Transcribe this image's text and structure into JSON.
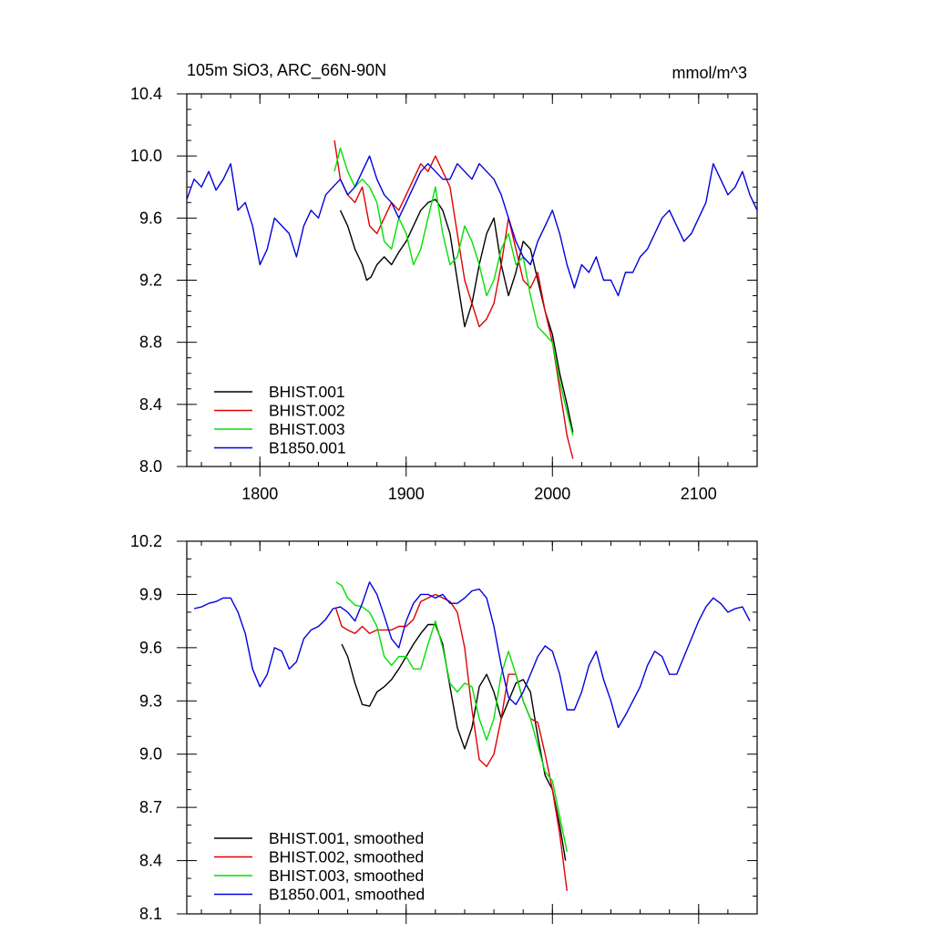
{
  "header": {
    "title": "105m SiO3, ARC_66N-90N",
    "units": "mmol/m^3"
  },
  "colors": {
    "BHIST.001": "#000000",
    "BHIST.002": "#e00000",
    "BHIST.003": "#00e000",
    "B1850.001": "#0000e0"
  },
  "chart_data": [
    {
      "type": "line",
      "title": "105m SiO3, ARC_66N-90N",
      "xlabel": "",
      "ylabel": "",
      "units_label": "mmol/m^3",
      "xlim": [
        1750,
        2140
      ],
      "ylim": [
        8.0,
        10.4
      ],
      "xticks": [
        1800,
        1900,
        2000,
        2100
      ],
      "xtick_labels": [
        "1800",
        "1900",
        "2000",
        "2100"
      ],
      "yticks": [
        8.0,
        8.4,
        8.8,
        9.2,
        9.6,
        10.0,
        10.4
      ],
      "ytick_labels": [
        "8.0",
        "8.4",
        "8.8",
        "9.2",
        "9.6",
        "10.0",
        "10.4"
      ],
      "grid": false,
      "legend_position": "bottom-left",
      "series": [
        {
          "name": "BHIST.001",
          "x": [
            1855,
            1860,
            1865,
            1870,
            1873,
            1876,
            1880,
            1885,
            1890,
            1895,
            1900,
            1905,
            1910,
            1915,
            1920,
            1925,
            1930,
            1935,
            1940,
            1945,
            1950,
            1955,
            1960,
            1965,
            1970,
            1975,
            1980,
            1985,
            1990,
            1995,
            2000,
            2005,
            2010,
            2014
          ],
          "y": [
            9.65,
            9.55,
            9.4,
            9.3,
            9.2,
            9.22,
            9.3,
            9.35,
            9.3,
            9.38,
            9.45,
            9.55,
            9.65,
            9.7,
            9.72,
            9.65,
            9.5,
            9.2,
            8.9,
            9.05,
            9.3,
            9.5,
            9.6,
            9.3,
            9.1,
            9.25,
            9.45,
            9.4,
            9.2,
            9.0,
            8.85,
            8.6,
            8.4,
            8.22
          ]
        },
        {
          "name": "BHIST.002",
          "x": [
            1851,
            1855,
            1860,
            1865,
            1870,
            1875,
            1880,
            1885,
            1890,
            1895,
            1900,
            1905,
            1910,
            1915,
            1920,
            1925,
            1930,
            1935,
            1940,
            1945,
            1950,
            1955,
            1960,
            1965,
            1970,
            1975,
            1980,
            1985,
            1990,
            1995,
            2000,
            2005,
            2010,
            2014
          ],
          "y": [
            10.1,
            9.85,
            9.75,
            9.7,
            9.8,
            9.55,
            9.5,
            9.6,
            9.7,
            9.65,
            9.75,
            9.85,
            9.95,
            9.9,
            10.0,
            9.9,
            9.8,
            9.5,
            9.2,
            9.05,
            8.9,
            8.95,
            9.05,
            9.3,
            9.6,
            9.4,
            9.2,
            9.15,
            9.25,
            9.0,
            8.8,
            8.5,
            8.2,
            8.05
          ]
        },
        {
          "name": "BHIST.003",
          "x": [
            1851,
            1855,
            1860,
            1865,
            1870,
            1875,
            1880,
            1885,
            1890,
            1895,
            1900,
            1905,
            1910,
            1915,
            1920,
            1925,
            1930,
            1935,
            1940,
            1945,
            1950,
            1955,
            1960,
            1965,
            1970,
            1975,
            1980,
            1985,
            1990,
            1995,
            2000,
            2005,
            2010,
            2014
          ],
          "y": [
            9.9,
            10.05,
            9.9,
            9.8,
            9.85,
            9.8,
            9.7,
            9.45,
            9.4,
            9.6,
            9.5,
            9.3,
            9.4,
            9.6,
            9.8,
            9.5,
            9.3,
            9.35,
            9.55,
            9.45,
            9.3,
            9.1,
            9.2,
            9.4,
            9.5,
            9.3,
            9.35,
            9.1,
            8.9,
            8.85,
            8.8,
            8.55,
            8.35,
            8.2
          ]
        },
        {
          "name": "B1850.001",
          "x": [
            1750,
            1755,
            1760,
            1765,
            1770,
            1775,
            1780,
            1785,
            1790,
            1795,
            1800,
            1805,
            1810,
            1815,
            1820,
            1825,
            1830,
            1835,
            1840,
            1845,
            1850,
            1855,
            1860,
            1865,
            1870,
            1875,
            1880,
            1885,
            1890,
            1895,
            1900,
            1905,
            1910,
            1915,
            1920,
            1925,
            1930,
            1935,
            1940,
            1945,
            1950,
            1955,
            1960,
            1965,
            1970,
            1975,
            1980,
            1985,
            1990,
            1995,
            2000,
            2005,
            2010,
            2015,
            2020,
            2025,
            2030,
            2035,
            2040,
            2045,
            2050,
            2055,
            2060,
            2065,
            2070,
            2075,
            2080,
            2085,
            2090,
            2095,
            2100,
            2105,
            2110,
            2115,
            2120,
            2125,
            2130,
            2135,
            2140
          ],
          "y": [
            9.72,
            9.85,
            9.8,
            9.9,
            9.78,
            9.85,
            9.95,
            9.65,
            9.7,
            9.55,
            9.3,
            9.4,
            9.6,
            9.55,
            9.5,
            9.35,
            9.55,
            9.65,
            9.6,
            9.75,
            9.8,
            9.85,
            9.75,
            9.8,
            9.9,
            10.0,
            9.85,
            9.75,
            9.7,
            9.6,
            9.7,
            9.8,
            9.9,
            9.95,
            9.9,
            9.85,
            9.85,
            9.95,
            9.9,
            9.85,
            9.95,
            9.9,
            9.85,
            9.75,
            9.6,
            9.45,
            9.35,
            9.3,
            9.45,
            9.55,
            9.65,
            9.5,
            9.3,
            9.15,
            9.3,
            9.25,
            9.35,
            9.2,
            9.2,
            9.1,
            9.25,
            9.25,
            9.35,
            9.4,
            9.5,
            9.6,
            9.65,
            9.55,
            9.45,
            9.5,
            9.6,
            9.7,
            9.95,
            9.85,
            9.75,
            9.8,
            9.9,
            9.75,
            9.65
          ]
        }
      ]
    },
    {
      "type": "line",
      "title": "",
      "xlabel": "",
      "ylabel": "",
      "xlim": [
        1750,
        2140
      ],
      "ylim": [
        8.1,
        10.2
      ],
      "xticks": [
        1800,
        1900,
        2000,
        2100
      ],
      "yticks": [
        8.1,
        8.4,
        8.7,
        9.0,
        9.3,
        9.6,
        9.9,
        10.2
      ],
      "ytick_labels": [
        "8.1",
        "8.4",
        "8.7",
        "9.0",
        "9.3",
        "9.6",
        "9.9",
        "10.2"
      ],
      "grid": false,
      "legend_position": "bottom-left",
      "series": [
        {
          "name": "BHIST.001, smoothed",
          "x": [
            1856,
            1860,
            1865,
            1870,
            1875,
            1880,
            1885,
            1890,
            1895,
            1900,
            1905,
            1910,
            1915,
            1920,
            1925,
            1930,
            1935,
            1940,
            1945,
            1950,
            1955,
            1960,
            1965,
            1970,
            1975,
            1980,
            1985,
            1990,
            1995,
            2000,
            2005,
            2009
          ],
          "y": [
            9.62,
            9.55,
            9.4,
            9.28,
            9.27,
            9.35,
            9.38,
            9.42,
            9.48,
            9.55,
            9.62,
            9.68,
            9.73,
            9.73,
            9.62,
            9.38,
            9.15,
            9.03,
            9.15,
            9.38,
            9.45,
            9.35,
            9.2,
            9.3,
            9.4,
            9.42,
            9.35,
            9.1,
            8.88,
            8.8,
            8.6,
            8.4
          ]
        },
        {
          "name": "BHIST.002, smoothed",
          "x": [
            1852,
            1856,
            1860,
            1865,
            1870,
            1875,
            1880,
            1885,
            1890,
            1895,
            1900,
            1905,
            1910,
            1915,
            1920,
            1925,
            1930,
            1935,
            1940,
            1945,
            1950,
            1955,
            1960,
            1965,
            1970,
            1975,
            1980,
            1985,
            1990,
            1995,
            2000,
            2005,
            2010
          ],
          "y": [
            9.82,
            9.72,
            9.7,
            9.68,
            9.72,
            9.68,
            9.7,
            9.7,
            9.7,
            9.72,
            9.72,
            9.76,
            9.86,
            9.88,
            9.9,
            9.88,
            9.86,
            9.8,
            9.6,
            9.25,
            8.97,
            8.93,
            9.0,
            9.2,
            9.45,
            9.45,
            9.3,
            9.2,
            9.18,
            9.0,
            8.8,
            8.55,
            8.23
          ]
        },
        {
          "name": "BHIST.003, smoothed",
          "x": [
            1852,
            1856,
            1860,
            1865,
            1870,
            1875,
            1880,
            1885,
            1890,
            1895,
            1900,
            1905,
            1910,
            1915,
            1920,
            1925,
            1930,
            1935,
            1940,
            1945,
            1950,
            1955,
            1960,
            1965,
            1970,
            1975,
            1980,
            1985,
            1990,
            1995,
            2000,
            2005,
            2010
          ],
          "y": [
            9.97,
            9.95,
            9.88,
            9.84,
            9.83,
            9.8,
            9.72,
            9.55,
            9.5,
            9.55,
            9.55,
            9.48,
            9.48,
            9.62,
            9.75,
            9.6,
            9.4,
            9.35,
            9.4,
            9.38,
            9.2,
            9.08,
            9.2,
            9.45,
            9.58,
            9.45,
            9.3,
            9.2,
            9.05,
            8.9,
            8.85,
            8.65,
            8.45
          ]
        },
        {
          "name": "B1850.001, smoothed",
          "x": [
            1755,
            1760,
            1765,
            1770,
            1775,
            1780,
            1785,
            1790,
            1795,
            1800,
            1805,
            1810,
            1815,
            1820,
            1825,
            1830,
            1835,
            1840,
            1845,
            1850,
            1855,
            1860,
            1865,
            1870,
            1875,
            1880,
            1885,
            1890,
            1895,
            1900,
            1905,
            1910,
            1915,
            1920,
            1925,
            1930,
            1935,
            1940,
            1945,
            1950,
            1955,
            1960,
            1965,
            1970,
            1975,
            1980,
            1985,
            1990,
            1995,
            2000,
            2005,
            2010,
            2015,
            2020,
            2025,
            2030,
            2035,
            2040,
            2045,
            2050,
            2055,
            2060,
            2065,
            2070,
            2075,
            2080,
            2085,
            2090,
            2095,
            2100,
            2105,
            2110,
            2115,
            2120,
            2125,
            2130,
            2135
          ],
          "y": [
            9.82,
            9.83,
            9.85,
            9.86,
            9.88,
            9.88,
            9.8,
            9.68,
            9.48,
            9.38,
            9.45,
            9.6,
            9.58,
            9.48,
            9.52,
            9.65,
            9.7,
            9.72,
            9.76,
            9.82,
            9.83,
            9.8,
            9.75,
            9.85,
            9.97,
            9.9,
            9.78,
            9.65,
            9.6,
            9.75,
            9.85,
            9.9,
            9.9,
            9.88,
            9.9,
            9.85,
            9.85,
            9.88,
            9.92,
            9.93,
            9.88,
            9.72,
            9.5,
            9.32,
            9.28,
            9.35,
            9.45,
            9.55,
            9.61,
            9.58,
            9.45,
            9.25,
            9.25,
            9.35,
            9.5,
            9.58,
            9.42,
            9.3,
            9.15,
            9.22,
            9.3,
            9.38,
            9.5,
            9.58,
            9.55,
            9.45,
            9.45,
            9.55,
            9.65,
            9.75,
            9.83,
            9.88,
            9.85,
            9.8,
            9.82,
            9.83,
            9.75
          ]
        }
      ]
    }
  ]
}
